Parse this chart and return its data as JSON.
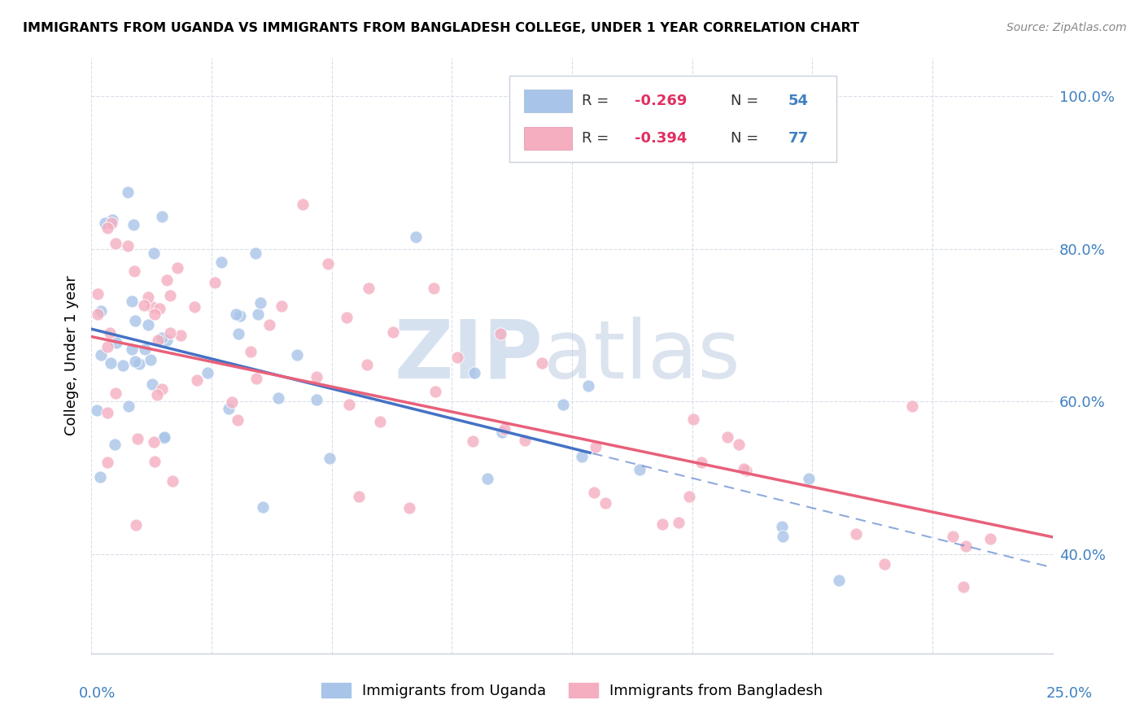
{
  "title": "IMMIGRANTS FROM UGANDA VS IMMIGRANTS FROM BANGLADESH COLLEGE, UNDER 1 YEAR CORRELATION CHART",
  "source": "Source: ZipAtlas.com",
  "ylabel": "College, Under 1 year",
  "uganda_color": "#a8c4e8",
  "bangladesh_color": "#f4aec0",
  "trend_uganda_color": "#4472c4",
  "trend_bangladesh_color": "#e8607a",
  "xlim": [
    0.0,
    0.25
  ],
  "ylim": [
    0.27,
    1.05
  ],
  "ytick_positions": [
    0.4,
    0.6,
    0.8,
    1.0
  ],
  "ytick_labels": [
    "40.0%",
    "60.0%",
    "80.0%",
    "100.0%"
  ],
  "xtick_left_label": "0.0%",
  "xtick_right_label": "25.0%",
  "watermark_zip": "ZIP",
  "watermark_atlas": "atlas",
  "legend_r_uganda": "-0.269",
  "legend_n_uganda": "54",
  "legend_r_bangladesh": "-0.394",
  "legend_n_bangladesh": "77",
  "trend_uganda_x_solid_end": 0.13,
  "trend_uganda_intercept": 0.695,
  "trend_uganda_slope": -1.25,
  "trend_bangladesh_intercept": 0.685,
  "trend_bangladesh_slope": -1.05,
  "grid_color": "#d8dde8",
  "grid_style": "--"
}
